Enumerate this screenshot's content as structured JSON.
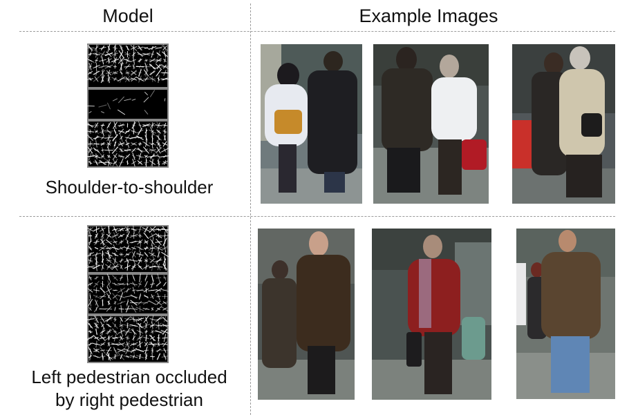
{
  "header": {
    "model": "Model",
    "examples": "Example Images"
  },
  "rows": [
    {
      "label": "Shoulder-to-shoulder",
      "model_icon": "hog-filter-model",
      "example_count": 3
    },
    {
      "label": "Left pedestrian occluded by right pedestrian",
      "label_line1": "Left pedestrian occluded",
      "label_line2": "by right pedestrian",
      "model_icon": "hog-filter-model",
      "example_count": 3
    }
  ],
  "colors": {
    "divider": "#9a9a9a",
    "model_bg": "#000000",
    "model_stroke": "#ffffff"
  }
}
